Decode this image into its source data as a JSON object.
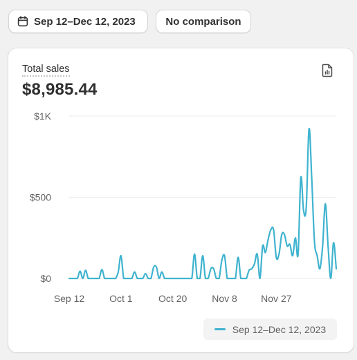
{
  "toolbar": {
    "date_range_label": "Sep 12–Dec 12, 2023",
    "comparison_label": "No comparison"
  },
  "card": {
    "metric_label": "Total sales",
    "metric_value": "$8,985.44"
  },
  "colors": {
    "series": "#3fb3cf",
    "grid": "#ebebeb",
    "axis_text": "#616161"
  },
  "icons": {
    "date": "calendar-icon",
    "export": "export-report-icon"
  },
  "chart_data": {
    "type": "line",
    "title": "",
    "xlabel": "",
    "ylabel": "",
    "ylim": [
      0,
      1000
    ],
    "y_ticks": [
      {
        "value": 0,
        "label": "$0"
      },
      {
        "value": 500,
        "label": "$500"
      },
      {
        "value": 1000,
        "label": "$1K"
      }
    ],
    "x_ticks": [
      {
        "index": 0,
        "label": "Sep 12"
      },
      {
        "index": 19,
        "label": "Oct 1"
      },
      {
        "index": 38,
        "label": "Oct 20"
      },
      {
        "index": 57,
        "label": "Nov 8"
      },
      {
        "index": 76,
        "label": "Nov 27"
      }
    ],
    "grid": true,
    "legend_position": "bottom-right",
    "series": [
      {
        "name": "Sep 12–Dec 12, 2023",
        "values": [
          0,
          0,
          0,
          0,
          45,
          0,
          50,
          0,
          0,
          0,
          0,
          0,
          55,
          0,
          0,
          0,
          0,
          0,
          40,
          140,
          0,
          0,
          0,
          0,
          40,
          0,
          0,
          0,
          30,
          0,
          0,
          70,
          70,
          0,
          40,
          0,
          0,
          0,
          0,
          0,
          0,
          0,
          0,
          0,
          0,
          0,
          150,
          0,
          0,
          140,
          0,
          0,
          60,
          60,
          0,
          0,
          110,
          140,
          0,
          0,
          0,
          0,
          130,
          0,
          0,
          0,
          50,
          60,
          90,
          150,
          0,
          200,
          160,
          240,
          300,
          300,
          130,
          150,
          270,
          270,
          200,
          210,
          140,
          250,
          150,
          620,
          420,
          440,
          920,
          620,
          230,
          140,
          60,
          200,
          460,
          200,
          0,
          220,
          60
        ]
      }
    ]
  }
}
